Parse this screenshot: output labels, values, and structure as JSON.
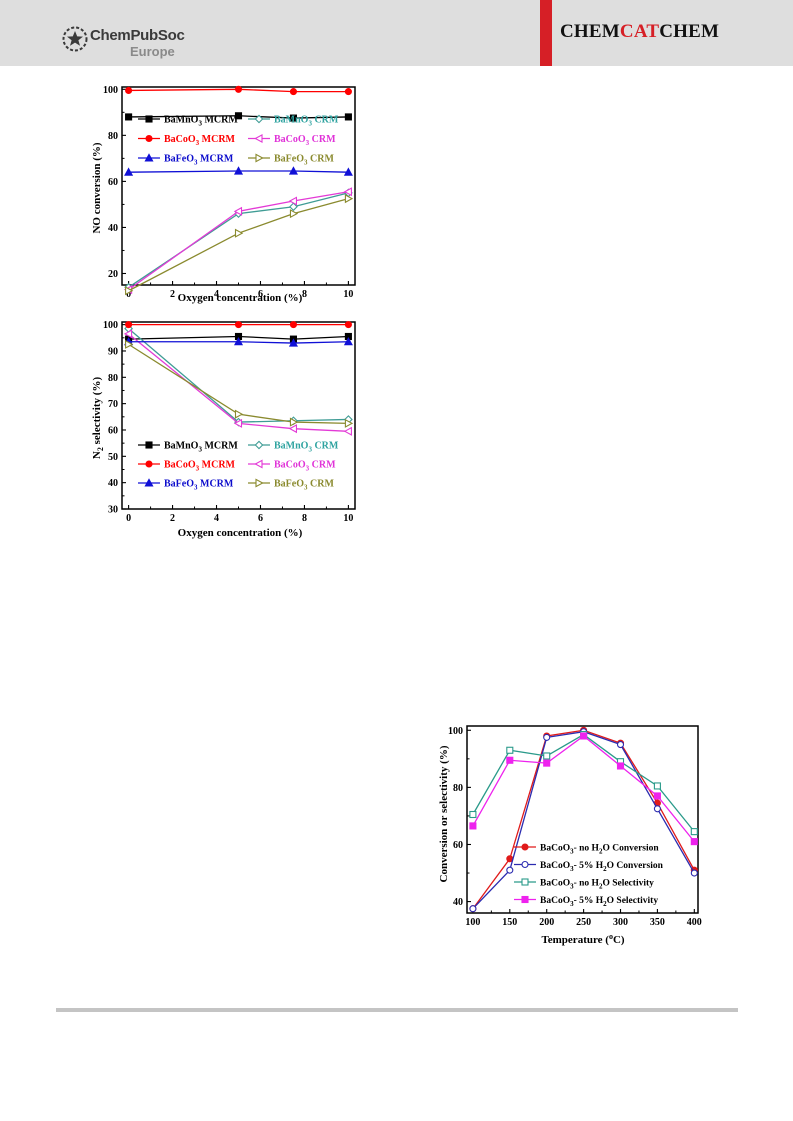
{
  "header": {
    "publisher_name": "ChemPubSoc",
    "publisher_region": "Europe",
    "journal_parts": [
      "CHEM",
      "CAT",
      "CHEM"
    ],
    "accent_color": "#d61f26",
    "icon": "chempubsoc-star-logo"
  },
  "chart_data": [
    {
      "type": "line",
      "xlabel": "Oxygen concentration (%)",
      "ylabel": "NO conversion (%)",
      "xlim": [
        -0.3,
        10.3
      ],
      "ylim": [
        15,
        101
      ],
      "xticks": [
        0,
        2,
        4,
        6,
        8,
        10
      ],
      "yticks": [
        20,
        40,
        60,
        80,
        100
      ],
      "legend_position": "upper-left, two columns",
      "series": [
        {
          "name": "BaMnO3 MCRM",
          "label": "BaMnO",
          "sub": "3",
          "label_suffix": " MCRM",
          "color": "#000000",
          "marker": "square",
          "filled": true,
          "text_color": "#000000",
          "x": [
            0,
            5,
            7.5,
            10
          ],
          "values": [
            88,
            88.5,
            87.5,
            88
          ]
        },
        {
          "name": "BaMnO3 CRM",
          "label": "BaMnO",
          "sub": "3",
          "label_suffix": " CRM",
          "color": "#3f9c95",
          "marker": "diamond",
          "filled": false,
          "text_color": "#2fa3a0",
          "x": [
            0,
            5,
            7.5,
            10
          ],
          "values": [
            14,
            46,
            49,
            55
          ]
        },
        {
          "name": "BaCoO3 MCRM",
          "label": "BaCoO",
          "sub": "3",
          "label_suffix": " MCRM",
          "color": "#ff0000",
          "marker": "circle",
          "filled": true,
          "text_color": "#ff0000",
          "x": [
            0,
            5,
            7.5,
            10
          ],
          "values": [
            99.5,
            100,
            99,
            99
          ]
        },
        {
          "name": "BaCoO3 CRM",
          "label": "BaCoO",
          "sub": "3",
          "label_suffix": " CRM",
          "color": "#e33ad6",
          "marker": "tri-left",
          "filled": false,
          "text_color": "#e033d8",
          "x": [
            0,
            5,
            7.5,
            10
          ],
          "values": [
            13,
            47,
            51.5,
            55.5
          ]
        },
        {
          "name": "BaFeO3 MCRM",
          "label": "BaFeO",
          "sub": "3",
          "label_suffix": " MCRM",
          "color": "#1010d6",
          "marker": "tri-up",
          "filled": true,
          "text_color": "#0c0ccc",
          "x": [
            0,
            5,
            7.5,
            10
          ],
          "values": [
            64,
            64.5,
            64.5,
            64
          ]
        },
        {
          "name": "BaFeO3 CRM",
          "label": "BaFeO",
          "sub": "3",
          "label_suffix": " CRM",
          "color": "#8a8a2e",
          "marker": "tri-right",
          "filled": false,
          "text_color": "#8a8a2e",
          "x": [
            0,
            5,
            7.5,
            10
          ],
          "values": [
            12.5,
            37.5,
            46,
            52.5
          ]
        }
      ]
    },
    {
      "type": "line",
      "xlabel": "Oxygen concentration (%)",
      "ylabel_main": "N",
      "ylabel_sub": "2",
      "ylabel_suffix": " selectivity (%)",
      "xlim": [
        -0.3,
        10.3
      ],
      "ylim": [
        30,
        101
      ],
      "xticks": [
        0,
        2,
        4,
        6,
        8,
        10
      ],
      "yticks": [
        30,
        40,
        50,
        60,
        70,
        80,
        90,
        100
      ],
      "legend_position": "lower-left, two columns",
      "series": [
        {
          "name": "BaMnO3 MCRM",
          "label": "BaMnO",
          "sub": "3",
          "label_suffix": " MCRM",
          "color": "#000000",
          "marker": "square",
          "filled": true,
          "text_color": "#000000",
          "x": [
            0,
            5,
            7.5,
            10
          ],
          "values": [
            94.5,
            95.5,
            94.5,
            95.5
          ]
        },
        {
          "name": "BaMnO3 CRM",
          "label": "BaMnO",
          "sub": "3",
          "label_suffix": " CRM",
          "color": "#3f9c95",
          "marker": "diamond",
          "filled": false,
          "text_color": "#2fa3a0",
          "x": [
            0,
            5,
            7.5,
            10
          ],
          "values": [
            98.5,
            63,
            63.5,
            64
          ]
        },
        {
          "name": "BaCoO3 MCRM",
          "label": "BaCoO",
          "sub": "3",
          "label_suffix": " MCRM",
          "color": "#ff0000",
          "marker": "circle",
          "filled": true,
          "text_color": "#ff0000",
          "x": [
            0,
            5,
            7.5,
            10
          ],
          "values": [
            100,
            100,
            100,
            100
          ]
        },
        {
          "name": "BaCoO3 CRM",
          "label": "BaCoO",
          "sub": "3",
          "label_suffix": " CRM",
          "color": "#e33ad6",
          "marker": "tri-left",
          "filled": false,
          "text_color": "#e033d8",
          "x": [
            0,
            5,
            7.5,
            10
          ],
          "values": [
            96.5,
            62.5,
            60.5,
            59.5
          ]
        },
        {
          "name": "BaFeO3 MCRM",
          "label": "BaFeO",
          "sub": "3",
          "label_suffix": " MCRM",
          "color": "#1010d6",
          "marker": "tri-up",
          "filled": true,
          "text_color": "#0c0ccc",
          "x": [
            0,
            5,
            7.5,
            10
          ],
          "values": [
            93.5,
            93.5,
            93,
            93.5
          ]
        },
        {
          "name": "BaFeO3 CRM",
          "label": "BaFeO",
          "sub": "3",
          "label_suffix": " CRM",
          "color": "#8a8a2e",
          "marker": "tri-right",
          "filled": false,
          "text_color": "#8a8a2e",
          "x": [
            0,
            5,
            7.5,
            10
          ],
          "values": [
            92.5,
            66,
            63,
            62.5
          ]
        }
      ]
    },
    {
      "type": "line",
      "xlabel_main": "Temperature (",
      "xlabel_sup": "o",
      "xlabel_suffix": "C)",
      "ylabel": "Conversion or selectivity (%)",
      "xlim": [
        92,
        405
      ],
      "ylim": [
        36,
        101.5
      ],
      "xticks": [
        100,
        150,
        200,
        250,
        300,
        350,
        400
      ],
      "yticks": [
        40,
        60,
        80,
        100
      ],
      "legend_position": "lower-center",
      "series": [
        {
          "name": "BaCoO3- no H2O Conversion",
          "parts": [
            "BaCoO",
            "3",
            "- no H",
            "2",
            "O Conversion"
          ],
          "color": "#e01a1a",
          "marker": "circle",
          "filled": true,
          "x": [
            100,
            150,
            200,
            250,
            300,
            350,
            400
          ],
          "values": [
            37.5,
            55,
            98,
            100,
            95.5,
            74.5,
            51
          ]
        },
        {
          "name": "BaCoO3- 5% H2O Conversion",
          "parts": [
            "BaCoO",
            "3",
            "- 5% H",
            "2",
            "O Conversion"
          ],
          "color": "#2b2bb0",
          "marker": "circle",
          "filled": false,
          "x": [
            100,
            150,
            200,
            250,
            300,
            350,
            400
          ],
          "values": [
            37.5,
            51,
            97.5,
            99.5,
            95,
            72.5,
            50
          ]
        },
        {
          "name": "BaCoO3- no H2O Selectivity",
          "parts": [
            "BaCoO",
            "3",
            "- no H",
            "2",
            "O Selectivity"
          ],
          "color": "#2a9a8a",
          "marker": "square",
          "filled": false,
          "x": [
            100,
            150,
            200,
            250,
            300,
            350,
            400
          ],
          "values": [
            70.5,
            93,
            91,
            98.5,
            89,
            80.5,
            64.5
          ]
        },
        {
          "name": "BaCoO3- 5% H2O Selectivity",
          "parts": [
            "BaCoO",
            "3",
            "- 5% H",
            "2",
            "O Selectivity"
          ],
          "color": "#ee22ee",
          "marker": "square",
          "filled": true,
          "x": [
            100,
            150,
            200,
            250,
            300,
            350,
            400
          ],
          "values": [
            66.5,
            89.5,
            88.5,
            98,
            87.5,
            77,
            61
          ]
        }
      ]
    }
  ]
}
